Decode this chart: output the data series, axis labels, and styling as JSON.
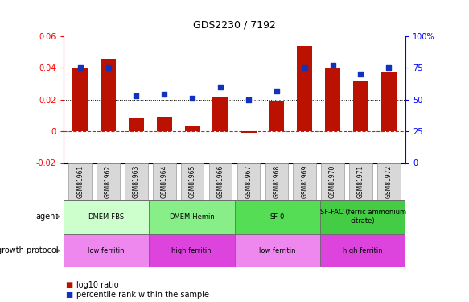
{
  "title": "GDS2230 / 7192",
  "samples": [
    "GSM81961",
    "GSM81962",
    "GSM81963",
    "GSM81964",
    "GSM81965",
    "GSM81966",
    "GSM81967",
    "GSM81968",
    "GSM81969",
    "GSM81970",
    "GSM81971",
    "GSM81972"
  ],
  "log10_ratio": [
    0.04,
    0.046,
    0.008,
    0.009,
    0.003,
    0.022,
    -0.001,
    0.019,
    0.054,
    0.04,
    0.032,
    0.037
  ],
  "percentile_rank": [
    75,
    75,
    53,
    54,
    51,
    60,
    50,
    57,
    75,
    77,
    70,
    75
  ],
  "ylim_left": [
    -0.02,
    0.06
  ],
  "ylim_right": [
    0,
    100
  ],
  "yticks_left": [
    -0.02,
    0.0,
    0.02,
    0.04,
    0.06
  ],
  "yticks_right": [
    0,
    25,
    50,
    75,
    100
  ],
  "hlines": [
    0.02,
    0.04
  ],
  "bar_color": "#bb1100",
  "dot_color": "#1133bb",
  "zero_line_color": "#cc2200",
  "agent_groups": [
    {
      "label": "DMEM-FBS",
      "start": 0,
      "end": 3,
      "color": "#ccffcc"
    },
    {
      "label": "DMEM-Hemin",
      "start": 3,
      "end": 6,
      "color": "#88ee88"
    },
    {
      "label": "SF-0",
      "start": 6,
      "end": 9,
      "color": "#55dd55"
    },
    {
      "label": "SF-FAC (ferric ammonium\ncitrate)",
      "start": 9,
      "end": 12,
      "color": "#44cc44"
    }
  ],
  "growth_groups": [
    {
      "label": "low ferritin",
      "start": 0,
      "end": 3,
      "color": "#ee88ee"
    },
    {
      "label": "high ferritin",
      "start": 3,
      "end": 6,
      "color": "#dd44dd"
    },
    {
      "label": "low ferritin",
      "start": 6,
      "end": 9,
      "color": "#ee88ee"
    },
    {
      "label": "high ferritin",
      "start": 9,
      "end": 12,
      "color": "#dd44dd"
    }
  ],
  "legend_red": "log10 ratio",
  "legend_blue": "percentile rank within the sample"
}
